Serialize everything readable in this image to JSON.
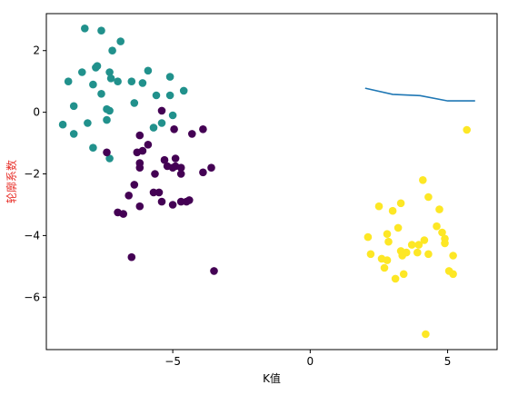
{
  "chart_data": {
    "type": "scatter",
    "xlabel": "K值",
    "ylabel": "轮廓系数",
    "ylabel_color": "#e8302a",
    "xlim": [
      -9.6,
      6.8
    ],
    "ylim": [
      -7.7,
      3.2
    ],
    "xticks": [
      -5,
      0,
      5
    ],
    "xtick_labels": [
      "−5",
      "0",
      "5"
    ],
    "yticks": [
      2,
      0,
      -2,
      -4,
      -6
    ],
    "ytick_labels": [
      "2",
      "0",
      "−2",
      "−4",
      "−6"
    ],
    "grid": false,
    "line_series": {
      "color": "#1f77b4",
      "x": [
        2,
        3,
        4,
        5,
        6
      ],
      "y": [
        0.78,
        0.58,
        0.54,
        0.37,
        0.37
      ]
    },
    "clusters": [
      {
        "color": "#21918c",
        "points": [
          [
            -8.2,
            2.72
          ],
          [
            -7.6,
            2.65
          ],
          [
            -7.2,
            2.0
          ],
          [
            -6.9,
            2.3
          ],
          [
            -8.8,
            1.0
          ],
          [
            -8.3,
            1.3
          ],
          [
            -7.8,
            1.45
          ],
          [
            -7.3,
            1.3
          ],
          [
            -7.0,
            1.0
          ],
          [
            -6.5,
            1.0
          ],
          [
            -6.1,
            0.95
          ],
          [
            -5.9,
            1.35
          ],
          [
            -5.1,
            1.15
          ],
          [
            -7.75,
            1.5
          ],
          [
            -7.25,
            1.1
          ],
          [
            -7.6,
            0.6
          ],
          [
            -7.9,
            0.9
          ],
          [
            -8.6,
            0.2
          ],
          [
            -8.1,
            -0.35
          ],
          [
            -7.4,
            0.1
          ],
          [
            -7.3,
            0.05
          ],
          [
            -7.4,
            -0.25
          ],
          [
            -6.4,
            0.3
          ],
          [
            -5.6,
            0.55
          ],
          [
            -5.1,
            0.55
          ],
          [
            -4.6,
            0.7
          ],
          [
            -5.0,
            -0.1
          ],
          [
            -5.4,
            -0.35
          ],
          [
            -5.7,
            -0.5
          ],
          [
            -9.0,
            -0.4
          ],
          [
            -8.6,
            -0.7
          ],
          [
            -7.9,
            -1.15
          ],
          [
            -7.3,
            -1.5
          ]
        ]
      },
      {
        "color": "#440154",
        "points": [
          [
            -7.4,
            -1.3
          ],
          [
            -6.2,
            -0.75
          ],
          [
            -5.9,
            -1.05
          ],
          [
            -6.3,
            -1.3
          ],
          [
            -6.1,
            -1.25
          ],
          [
            -6.2,
            -1.65
          ],
          [
            -6.2,
            -1.8
          ],
          [
            -5.65,
            -2.0
          ],
          [
            -5.3,
            -1.55
          ],
          [
            -5.2,
            -1.75
          ],
          [
            -4.9,
            -1.5
          ],
          [
            -4.9,
            -1.75
          ],
          [
            -4.7,
            -1.8
          ],
          [
            -5.0,
            -1.8
          ],
          [
            -4.7,
            -2.0
          ],
          [
            -4.95,
            -0.55
          ],
          [
            -4.3,
            -0.7
          ],
          [
            -3.9,
            -0.55
          ],
          [
            -3.9,
            -1.95
          ],
          [
            -3.6,
            -1.8
          ],
          [
            -5.4,
            0.05
          ],
          [
            -6.6,
            -2.7
          ],
          [
            -6.4,
            -2.35
          ],
          [
            -5.7,
            -2.6
          ],
          [
            -5.5,
            -2.6
          ],
          [
            -5.4,
            -2.9
          ],
          [
            -5.0,
            -3.0
          ],
          [
            -4.7,
            -2.9
          ],
          [
            -4.5,
            -2.9
          ],
          [
            -4.4,
            -2.85
          ],
          [
            -7.0,
            -3.25
          ],
          [
            -6.8,
            -3.3
          ],
          [
            -6.2,
            -3.05
          ],
          [
            -6.5,
            -4.7
          ],
          [
            -3.5,
            -5.15
          ]
        ]
      },
      {
        "color": "#fde725",
        "points": [
          [
            5.7,
            -0.57
          ],
          [
            4.1,
            -2.2
          ],
          [
            4.3,
            -2.75
          ],
          [
            2.5,
            -3.05
          ],
          [
            3.3,
            -2.95
          ],
          [
            4.7,
            -3.15
          ],
          [
            2.1,
            -4.05
          ],
          [
            2.8,
            -3.95
          ],
          [
            3.0,
            -3.2
          ],
          [
            3.2,
            -3.75
          ],
          [
            4.6,
            -3.7
          ],
          [
            4.8,
            -3.9
          ],
          [
            4.9,
            -4.1
          ],
          [
            4.9,
            -4.25
          ],
          [
            4.15,
            -4.15
          ],
          [
            3.95,
            -4.3
          ],
          [
            3.7,
            -4.3
          ],
          [
            2.85,
            -4.2
          ],
          [
            2.2,
            -4.6
          ],
          [
            2.6,
            -4.75
          ],
          [
            2.8,
            -4.8
          ],
          [
            3.3,
            -4.5
          ],
          [
            3.35,
            -4.65
          ],
          [
            3.5,
            -4.55
          ],
          [
            3.9,
            -4.55
          ],
          [
            4.3,
            -4.6
          ],
          [
            5.2,
            -4.65
          ],
          [
            2.7,
            -5.05
          ],
          [
            3.1,
            -5.4
          ],
          [
            3.4,
            -5.25
          ],
          [
            5.05,
            -5.15
          ],
          [
            5.2,
            -5.25
          ],
          [
            4.2,
            -7.2
          ]
        ]
      }
    ]
  }
}
